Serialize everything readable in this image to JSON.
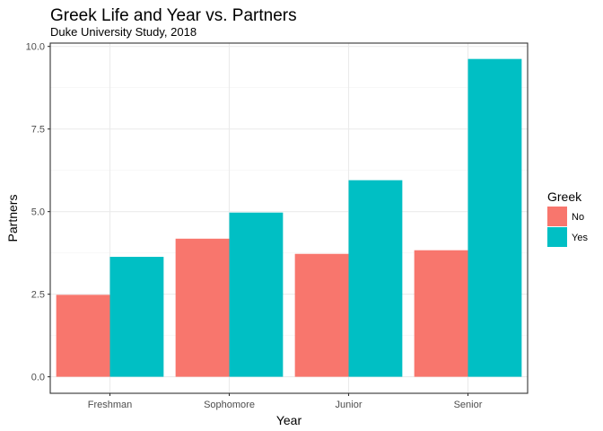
{
  "chart_data": {
    "type": "bar",
    "title": "Greek Life and Year vs. Partners",
    "subtitle": "Duke University Study, 2018",
    "xlabel": "Year",
    "ylabel": "Partners",
    "categories": [
      "Freshman",
      "Sophomore",
      "Junior",
      "Senior"
    ],
    "series": [
      {
        "name": "No",
        "values": [
          2.48,
          4.18,
          3.72,
          3.83
        ],
        "color": "#F8766D"
      },
      {
        "name": "Yes",
        "values": [
          3.63,
          4.97,
          5.95,
          9.62
        ],
        "color": "#00BFC4"
      }
    ],
    "ylim": [
      -0.5,
      10.1
    ],
    "yticks": [
      0.0,
      2.5,
      5.0,
      7.5,
      10.0
    ],
    "ytick_labels": [
      "0.0",
      "2.5",
      "5.0",
      "7.5",
      "10.0"
    ],
    "grid": true,
    "legend": {
      "title": "Greek",
      "position": "right"
    }
  }
}
